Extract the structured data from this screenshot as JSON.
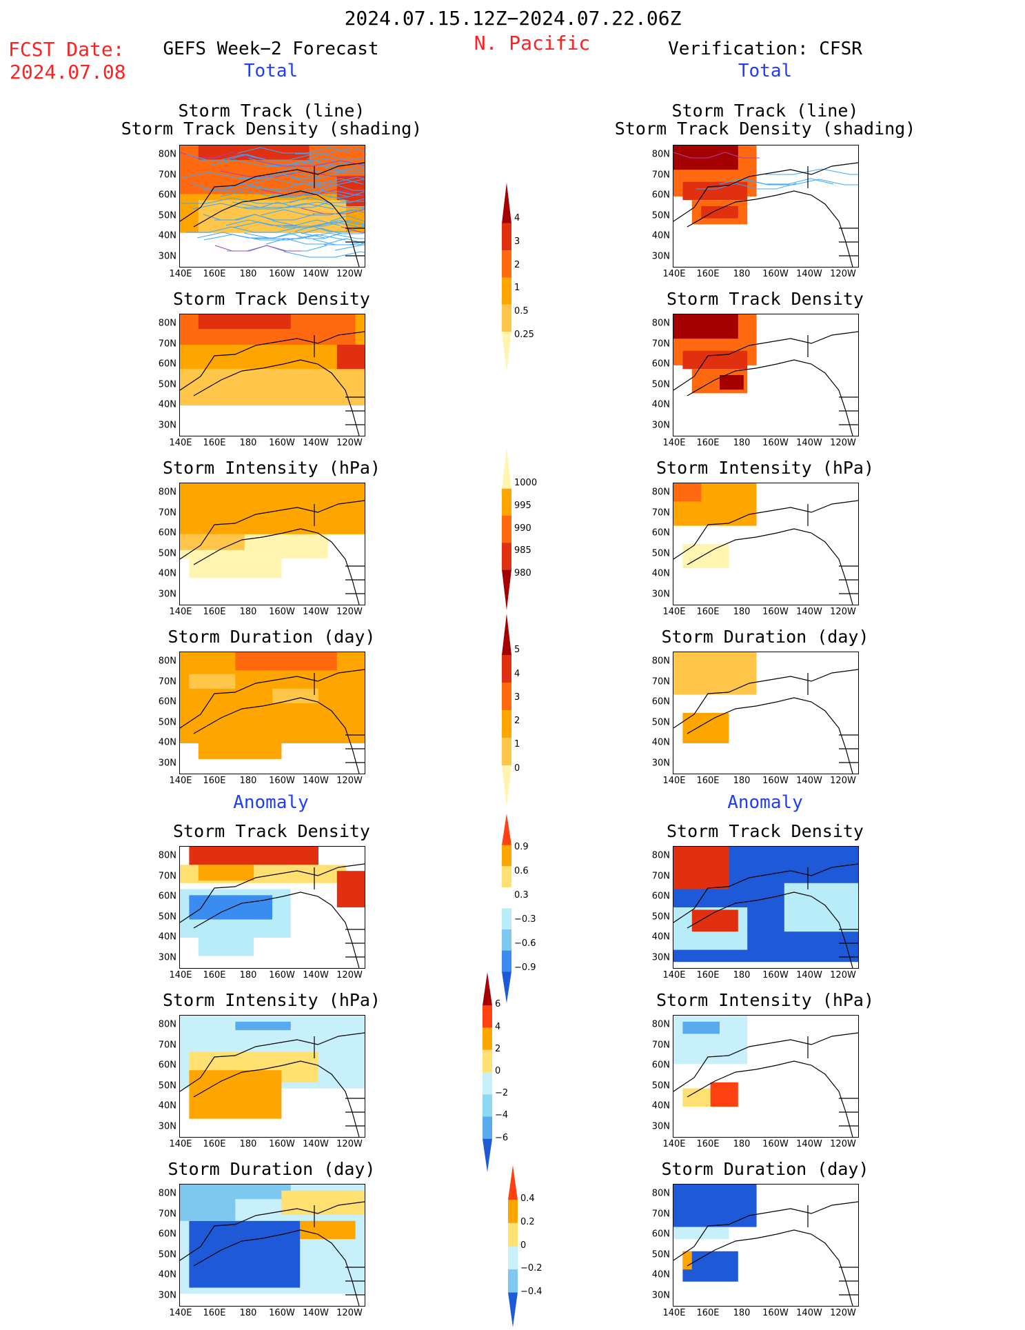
{
  "header": {
    "period": "2024.07.15.12Z−2024.07.22.06Z",
    "region": "N. Pacific",
    "fcst_label": "FCST Date:",
    "fcst_date": "2024.07.08",
    "left_title": "GEFS Week−2 Forecast",
    "right_title": "Verification: CFSR",
    "total_label": "Total",
    "anomaly_label": "Anomaly"
  },
  "axes": {
    "lat_labels": [
      "80N",
      "70N",
      "60N",
      "50N",
      "40N",
      "30N"
    ],
    "lon_labels": [
      "140E",
      "160E",
      "180",
      "160W",
      "140W",
      "120W"
    ]
  },
  "panels": [
    {
      "id": "fc-track",
      "title": [
        "Storm Track (line)",
        "Storm Track Density (shading)"
      ],
      "palette": "density",
      "pattern": "fc_track",
      "lines": true
    },
    {
      "id": "fc-density",
      "title": [
        "Storm Track Density"
      ],
      "palette": "density",
      "pattern": "fc_density"
    },
    {
      "id": "fc-intensity",
      "title": [
        "Storm Intensity (hPa)"
      ],
      "palette": "intensity",
      "pattern": "fc_intensity"
    },
    {
      "id": "fc-duration",
      "title": [
        "Storm Duration (day)"
      ],
      "palette": "duration",
      "pattern": "fc_duration"
    },
    {
      "id": "fc-anom-density",
      "title": [
        "Storm Track Density"
      ],
      "palette": "anom_density",
      "pattern": "fc_anom_density"
    },
    {
      "id": "fc-anom-intensity",
      "title": [
        "Storm Intensity (hPa)"
      ],
      "palette": "anom_intensity",
      "pattern": "fc_anom_intensity"
    },
    {
      "id": "fc-anom-duration",
      "title": [
        "Storm Duration (day)"
      ],
      "palette": "anom_duration",
      "pattern": "fc_anom_duration"
    },
    {
      "id": "vf-track",
      "title": [
        "Storm Track (line)",
        "Storm Track Density (shading)"
      ],
      "palette": "density",
      "pattern": "vf_track",
      "lines": true
    },
    {
      "id": "vf-density",
      "title": [
        "Storm Track Density"
      ],
      "palette": "density",
      "pattern": "vf_density"
    },
    {
      "id": "vf-intensity",
      "title": [
        "Storm Intensity (hPa)"
      ],
      "palette": "intensity",
      "pattern": "vf_intensity"
    },
    {
      "id": "vf-duration",
      "title": [
        "Storm Duration (day)"
      ],
      "palette": "duration",
      "pattern": "vf_duration"
    },
    {
      "id": "vf-anom-density",
      "title": [
        "Storm Track Density"
      ],
      "palette": "anom_density",
      "pattern": "vf_anom_density"
    },
    {
      "id": "vf-anom-intensity",
      "title": [
        "Storm Intensity (hPa)"
      ],
      "palette": "anom_intensity",
      "pattern": "vf_anom_intensity"
    },
    {
      "id": "vf-anom-duration",
      "title": [
        "Storm Duration (day)"
      ],
      "palette": "anom_duration",
      "pattern": "vf_anom_duration"
    }
  ],
  "colorbars": [
    {
      "id": "density",
      "labels": [
        "4",
        "3",
        "2",
        "1",
        "0.5",
        "0.25"
      ],
      "colors": [
        "#a50000",
        "#e03010",
        "#ff6a10",
        "#ffa500",
        "#ffc64a",
        "#fff5b0"
      ],
      "ends": "top"
    },
    {
      "id": "intensity",
      "labels": [
        "1000",
        "995",
        "990",
        "985",
        "980"
      ],
      "colors": [
        "#fff5b0",
        "#ffa500",
        "#ff6a10",
        "#e03010",
        "#a50000"
      ],
      "ends": "bottom"
    },
    {
      "id": "duration",
      "labels": [
        "5",
        "4",
        "3",
        "2",
        "1",
        "0"
      ],
      "colors": [
        "#a50000",
        "#e03010",
        "#ff6a10",
        "#ffa500",
        "#ffc64a",
        "#fff5b0"
      ],
      "ends": "top"
    },
    {
      "id": "anom_density",
      "labels": [
        "0.9",
        "0.6",
        "0.3",
        "−0.3",
        "−0.6",
        "−0.9"
      ],
      "colors": [
        "#ff4010",
        "#ffa500",
        "#ffe070",
        "#ffffff",
        "#b8ecf8",
        "#7ec8f0",
        "#3a8cf0",
        "#1e5ad8"
      ]
    },
    {
      "id": "anom_intensity",
      "labels": [
        "6",
        "4",
        "2",
        "0",
        "−2",
        "−4",
        "−6"
      ],
      "colors": [
        "#a50000",
        "#ff4010",
        "#ffa500",
        "#ffe070",
        "#c8f0fa",
        "#8ed8f4",
        "#5aaaf0",
        "#1e5ad8"
      ]
    },
    {
      "id": "anom_duration",
      "labels": [
        "0.4",
        "0.2",
        "0",
        "−0.2",
        "−0.4"
      ],
      "colors": [
        "#ff4010",
        "#ffa500",
        "#ffe070",
        "#c8f0fa",
        "#7ec8f0",
        "#1e5ad8"
      ]
    }
  ]
}
